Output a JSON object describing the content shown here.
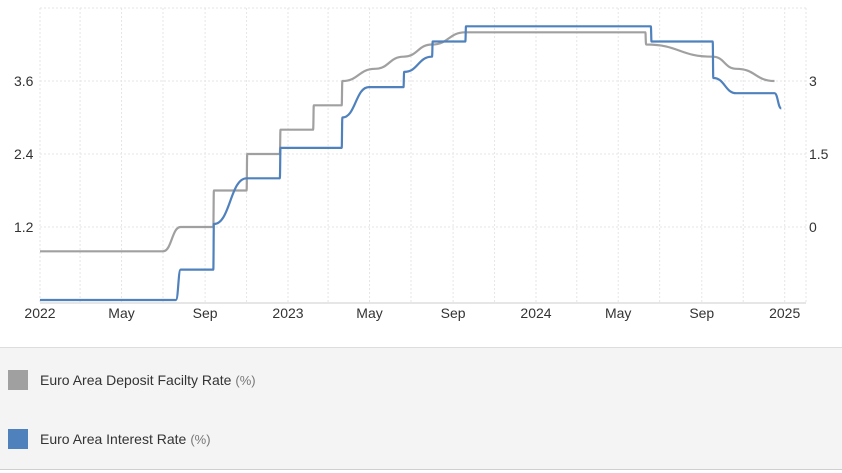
{
  "chart_data": {
    "type": "line",
    "x_ticks": [
      "2022",
      "May",
      "Sep",
      "2023",
      "May",
      "Sep",
      "2024",
      "May",
      "Sep",
      "2025"
    ],
    "y_left_ticks": [
      "1.2",
      "2.4",
      "3.6"
    ],
    "y_right_ticks": [
      "0",
      "1.5",
      "3"
    ],
    "y_left_range": [
      0,
      4.8
    ],
    "y_right_range": [
      -1.5,
      4.5
    ],
    "grid": true,
    "legend_position": "bottom",
    "series": [
      {
        "name": "Euro Area Deposit Facilty Rate",
        "unit": "(%)",
        "axis": "right",
        "color": "#a0a0a0",
        "points": [
          [
            "2022-01",
            -0.5
          ],
          [
            "2022-07",
            -0.5
          ],
          [
            "2022-07-27",
            0.0
          ],
          [
            "2022-09-13",
            0.0
          ],
          [
            "2022-09-14",
            0.75
          ],
          [
            "2022-11-01",
            0.75
          ],
          [
            "2022-11-02",
            1.5
          ],
          [
            "2022-12-20",
            1.5
          ],
          [
            "2022-12-21",
            2.0
          ],
          [
            "2023-02-07",
            2.0
          ],
          [
            "2023-02-08",
            2.5
          ],
          [
            "2023-03-21",
            2.5
          ],
          [
            "2023-03-22",
            3.0
          ],
          [
            "2023-05-09",
            3.25
          ],
          [
            "2023-06-20",
            3.5
          ],
          [
            "2023-08-01",
            3.75
          ],
          [
            "2023-09-19",
            4.0
          ],
          [
            "2024-06-10",
            4.0
          ],
          [
            "2024-06-11",
            3.75
          ],
          [
            "2024-09-17",
            3.5
          ],
          [
            "2024-10-22",
            3.25
          ],
          [
            "2024-12-17",
            3.0
          ]
        ]
      },
      {
        "name": "Euro Area Interest Rate",
        "unit": "(%)",
        "axis": "left",
        "color": "#4f81bd",
        "points": [
          [
            "2022-01",
            0.0
          ],
          [
            "2022-07-20",
            0.0
          ],
          [
            "2022-07-27",
            0.5
          ],
          [
            "2022-09-13",
            0.5
          ],
          [
            "2022-09-14",
            1.25
          ],
          [
            "2022-11-01",
            2.0
          ],
          [
            "2022-12-20",
            2.0
          ],
          [
            "2022-12-21",
            2.5
          ],
          [
            "2023-03-21",
            2.5
          ],
          [
            "2023-03-22",
            3.0
          ],
          [
            "2023-04-30",
            3.5
          ],
          [
            "2023-06-20",
            3.5
          ],
          [
            "2023-06-21",
            3.75
          ],
          [
            "2023-08-01",
            4.0
          ],
          [
            "2023-08-02",
            4.25
          ],
          [
            "2023-09-19",
            4.25
          ],
          [
            "2023-09-20",
            4.5
          ],
          [
            "2024-06-18",
            4.5
          ],
          [
            "2024-06-19",
            4.25
          ],
          [
            "2024-09-17",
            4.25
          ],
          [
            "2024-09-18",
            3.65
          ],
          [
            "2024-10-22",
            3.4
          ],
          [
            "2024-12-17",
            3.4
          ],
          [
            "2024-12-27",
            3.15
          ]
        ]
      }
    ]
  }
}
